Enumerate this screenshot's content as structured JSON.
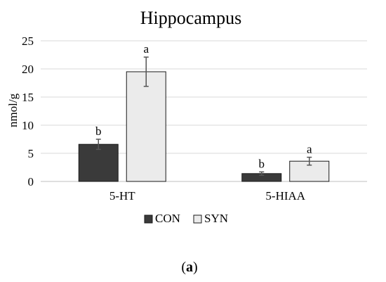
{
  "chart_data": {
    "type": "bar",
    "title": "Hippocampus",
    "ylabel": "nmol/g",
    "xlabel": "",
    "ylim": [
      0,
      25
    ],
    "yticks": [
      0,
      5,
      10,
      15,
      20,
      25
    ],
    "categories": [
      "5-HT",
      "5-HIAA"
    ],
    "grid": true,
    "legend_position": "bottom-center",
    "series": [
      {
        "name": "CON",
        "color": "#3a3a3a",
        "values": [
          6.6,
          1.4
        ],
        "errors": [
          0.9,
          0.3
        ],
        "labels": [
          "b",
          "b"
        ]
      },
      {
        "name": "SYN",
        "color": "#ebebeb",
        "values": [
          19.5,
          3.6
        ],
        "errors": [
          2.6,
          0.7
        ],
        "labels": [
          "a",
          "a"
        ]
      }
    ]
  },
  "figure_label": "(a)"
}
